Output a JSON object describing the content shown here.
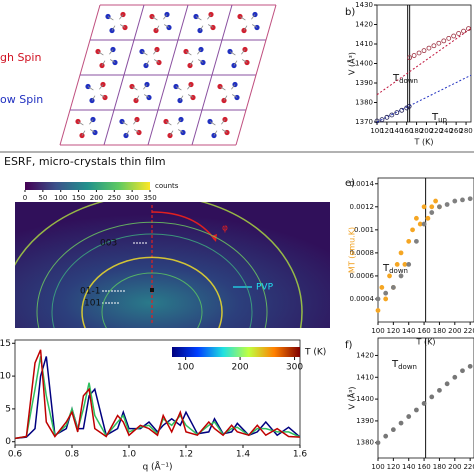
{
  "lattice": {
    "high_spin": "gh Spin",
    "low_spin": "ow Spin"
  },
  "section_title": "ESRF, micro-crystals thin film",
  "diffraction": {
    "colorbar_lim": [
      0,
      350
    ],
    "colorbar_ticks": [
      0,
      50,
      100,
      150,
      200,
      250,
      300,
      350
    ],
    "colorbar_label": "counts",
    "labels": [
      "003",
      "01-1",
      "101",
      "PVP",
      "φ"
    ]
  },
  "chart_data": [
    {
      "type": "scatter",
      "panel": "b)",
      "xlabel": "T (K)",
      "ylabel": "V (Å³)",
      "xlim": [
        100,
        290
      ],
      "ylim": [
        1370,
        1430
      ],
      "xticks": [
        100,
        120,
        140,
        160,
        180,
        200,
        220,
        240,
        260,
        280
      ],
      "yticks": [
        1370,
        1380,
        1390,
        1400,
        1410,
        1420,
        1430
      ],
      "vlines": [
        162,
        166
      ],
      "annotations": [
        {
          "main": "T",
          "sub": "down"
        },
        {
          "main": "T",
          "sub": "up"
        }
      ],
      "series": [
        {
          "style": "line",
          "color": "#c0143c",
          "x": [
            100,
            290
          ],
          "values": [
            1384,
            1418
          ]
        },
        {
          "style": "line",
          "color": "#2030c0",
          "x": [
            100,
            290
          ],
          "values": [
            1370,
            1394
          ]
        },
        {
          "style": "points",
          "color": "#9a2a3a",
          "x": [
            166,
            175,
            185,
            195,
            205,
            215,
            225,
            235,
            245,
            255,
            265,
            275,
            285
          ],
          "values": [
            1403,
            1404.1,
            1405.4,
            1406.6,
            1407.9,
            1409.1,
            1410.4,
            1411.6,
            1412.9,
            1414.1,
            1415.4,
            1416.6,
            1417.9
          ]
        },
        {
          "style": "points",
          "color": "#1a1a50",
          "x": [
            100,
            110,
            120,
            130,
            140,
            150,
            160,
            165
          ],
          "values": [
            1370.5,
            1371.2,
            1372.4,
            1373.6,
            1374.8,
            1376,
            1377.2,
            1378
          ]
        }
      ]
    },
    {
      "type": "scatter",
      "panel": "e)",
      "xlabel": "T (K)",
      "ylabel": "MT (emu.K)",
      "ylabel_color": "#f0a020",
      "xlim": [
        100,
        225
      ],
      "ylim": [
        0.0002,
        0.00145
      ],
      "xticks": [
        100,
        120,
        140,
        160,
        180,
        200,
        220
      ],
      "yticks": [
        0.0004,
        0.0006,
        0.0008,
        0.001,
        0.0012,
        0.0014
      ],
      "vlines": [
        162
      ],
      "annotations": [
        {
          "main": "T",
          "sub": "down"
        }
      ],
      "series": [
        {
          "style": "points",
          "color": "#f5a623",
          "x": [
            100,
            105,
            110,
            115,
            120,
            125,
            130,
            135,
            140,
            145,
            150,
            155,
            160,
            165,
            170,
            175,
            180
          ],
          "values": [
            0.0003,
            0.0005,
            0.0004,
            0.0006,
            0.0005,
            0.0007,
            0.0008,
            0.0007,
            0.0009,
            0.001,
            0.0011,
            0.00105,
            0.0012,
            0.0011,
            0.0012,
            0.00125,
            0.0012
          ]
        },
        {
          "style": "points",
          "color": "#808080",
          "x": [
            100,
            110,
            120,
            130,
            140,
            150,
            160,
            170,
            180,
            190,
            200,
            210,
            220
          ],
          "values": [
            0.0004,
            0.00045,
            0.0005,
            0.0006,
            0.0007,
            0.0009,
            0.00105,
            0.00115,
            0.0012,
            0.00122,
            0.00125,
            0.00126,
            0.00127
          ]
        }
      ]
    },
    {
      "type": "line",
      "xlabel": "q (Å⁻¹)",
      "xlim": [
        0.6,
        1.6
      ],
      "ylim": [
        -0.5,
        15.5
      ],
      "xticks": [
        0.6,
        0.8,
        {
          "value": 1.0,
          "label": "1.0"
        },
        1.2,
        1.4,
        1.6
      ],
      "yticks": [
        0,
        5,
        10,
        15
      ],
      "colorbar_lim": [
        75,
        310
      ],
      "colorbar_ticks": [
        100,
        200,
        300
      ],
      "colorbar_label": "T (K)",
      "x": [
        0.6,
        0.64,
        0.67,
        0.69,
        0.71,
        0.74,
        0.78,
        0.8,
        0.82,
        0.84,
        0.86,
        0.88,
        0.92,
        0.96,
        0.98,
        1.0,
        1.04,
        1.07,
        1.1,
        1.12,
        1.15,
        1.18,
        1.2,
        1.24,
        1.28,
        1.3,
        1.33,
        1.36,
        1.38,
        1.42,
        1.45,
        1.48,
        1.52,
        1.56,
        1.6
      ],
      "series": [
        {
          "color": "#00007f",
          "values": [
            0.5,
            0.7,
            2,
            10,
            13,
            1,
            2,
            5,
            2,
            2,
            7,
            8,
            1,
            2,
            4.5,
            2,
            2,
            3,
            1.5,
            2.5,
            3.5,
            2.5,
            4.5,
            1.2,
            1.5,
            3.5,
            1.2,
            1.5,
            2.8,
            1,
            1.5,
            3,
            1,
            2.2,
            0.7
          ]
        },
        {
          "color": "#2fbf5f",
          "values": [
            0.5,
            0.8,
            8,
            13,
            7,
            0.9,
            2.5,
            5,
            1.8,
            5,
            9,
            4,
            0.9,
            3,
            4,
            1.5,
            2.2,
            2.5,
            1.2,
            3.5,
            2.5,
            4,
            2.5,
            1.1,
            2.5,
            3,
            1.1,
            2,
            2.2,
            1,
            2,
            2,
            1.5,
            1.5,
            0.7
          ]
        },
        {
          "color": "#bf0000",
          "values": [
            0.5,
            0.8,
            12,
            14,
            3,
            0.8,
            3,
            4.5,
            1.5,
            7,
            8,
            2,
            0.8,
            4,
            3,
            1,
            2.5,
            2,
            1,
            4,
            1.5,
            4.5,
            1.5,
            1,
            3,
            2,
            1,
            2.5,
            1.5,
            1,
            2.5,
            1,
            2,
            0.8,
            0.7
          ]
        }
      ]
    },
    {
      "type": "scatter",
      "panel": "f)",
      "xlabel": "T (K)",
      "ylabel": "V (Å³)",
      "xlim": [
        100,
        225
      ],
      "ylim": [
        1373,
        1428
      ],
      "xticks": [
        100,
        120,
        140,
        160,
        180,
        200,
        220
      ],
      "yticks": [
        1380,
        1390,
        1400,
        1410,
        1420
      ],
      "vlines": [
        162
      ],
      "annotations": [
        {
          "main": "T",
          "sub": "down"
        }
      ],
      "series": [
        {
          "style": "points",
          "color": "#777777",
          "x": [
            100,
            110,
            120,
            130,
            140,
            150,
            160,
            170,
            180,
            190,
            200,
            210,
            220
          ],
          "values": [
            1380,
            1383,
            1386,
            1389,
            1392,
            1395,
            1398,
            1401,
            1404,
            1407,
            1410,
            1413,
            1415
          ]
        }
      ]
    }
  ]
}
